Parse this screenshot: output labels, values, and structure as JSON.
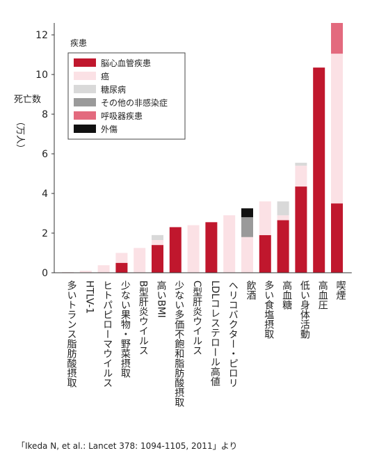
{
  "chart_data": {
    "type": "bar",
    "stacked": true,
    "ylabel": "死亡数（万人）",
    "ylim": [
      0,
      12.6
    ],
    "yticks": [
      0,
      2,
      4,
      6,
      8,
      10,
      12
    ],
    "grid": false,
    "legend_title": "疾患",
    "legend_position": "top-left",
    "categories": [
      "多いトランス脂肪酸摂取",
      "HTLV-1",
      "ヒトパピローマウイルス",
      "少ない果物・野菜摂取",
      "B型肝炎ウイルス",
      "高いBMI",
      "少ない多価不飽和脂肪酸摂取",
      "C型肝炎ウイルス",
      "LDLコレステロール高値",
      "ヘリコバクター・ピロリ",
      "飲酒",
      "多い食塩摂取",
      "高血糖",
      "低い身体活動",
      "高血圧",
      "喫煙"
    ],
    "series": [
      {
        "name": "脳心血管疾患",
        "color": "#c0172d",
        "values": [
          0.02,
          0,
          0,
          0.5,
          0,
          1.4,
          2.3,
          0,
          2.55,
          0,
          0,
          1.9,
          2.65,
          4.35,
          10.35,
          3.5
        ]
      },
      {
        "name": "癌",
        "color": "#fbe1e5",
        "values": [
          0,
          0.1,
          0.38,
          0.5,
          1.25,
          0.25,
          0,
          2.4,
          0,
          2.9,
          1.8,
          1.7,
          0.25,
          1.05,
          0,
          7.55
        ]
      },
      {
        "name": "糖尿病",
        "color": "#d9d9d9",
        "values": [
          0,
          0,
          0,
          0,
          0,
          0.25,
          0,
          0,
          0,
          0,
          0,
          0,
          0.7,
          0.15,
          0,
          0
        ]
      },
      {
        "name": "その他の非感染症",
        "color": "#9a9a9a",
        "values": [
          0,
          0,
          0,
          0,
          0,
          0,
          0,
          0,
          0,
          0,
          1.0,
          0,
          0,
          0,
          0,
          0
        ]
      },
      {
        "name": "呼吸器疾患",
        "color": "#e36a7e",
        "values": [
          0,
          0,
          0,
          0,
          0,
          0,
          0,
          0,
          0,
          0,
          0,
          0,
          0,
          0,
          0,
          1.55
        ]
      },
      {
        "name": "外傷",
        "color": "#111111",
        "values": [
          0,
          0,
          0,
          0,
          0,
          0,
          0,
          0,
          0,
          0,
          0.45,
          0,
          0,
          0,
          0,
          0
        ]
      }
    ]
  },
  "source": "「Ikeda N, et al.: Lancet 378: 1094-1105, 2011」より"
}
